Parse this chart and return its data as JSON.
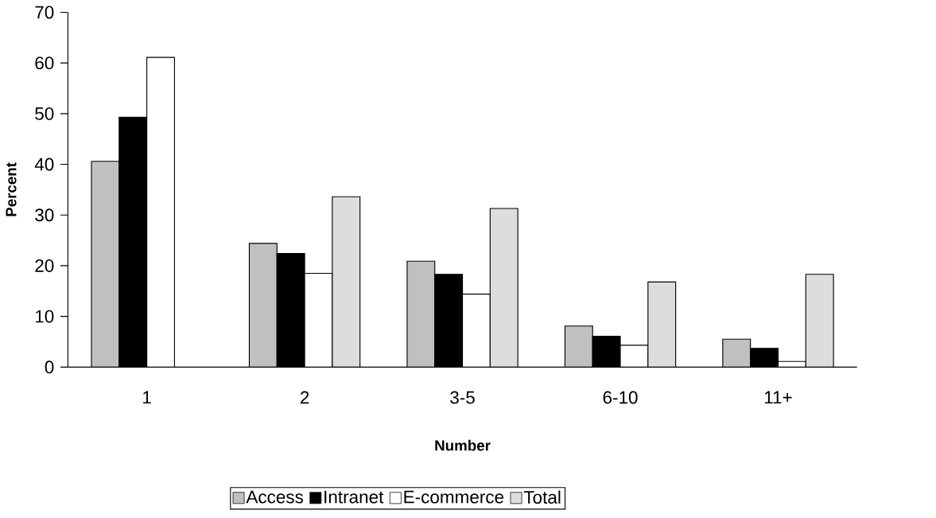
{
  "chart_data": {
    "type": "bar",
    "xlabel": "Number",
    "ylabel": "Percent",
    "categories": [
      "1",
      "2",
      "3-5",
      "6-10",
      "11+"
    ],
    "series": [
      {
        "name": "Access",
        "color": "#c0c0c0",
        "values": [
          40.6,
          24.4,
          20.9,
          8.1,
          5.5
        ]
      },
      {
        "name": "Intranet",
        "color": "#000000",
        "values": [
          49.3,
          22.4,
          18.3,
          6.1,
          3.7
        ]
      },
      {
        "name": "E-commerce",
        "color": "#ffffff",
        "values": [
          61.1,
          18.5,
          14.4,
          4.3,
          1.1
        ]
      },
      {
        "name": "Total",
        "color": "#dddddd",
        "values": [
          null,
          33.6,
          31.3,
          16.8,
          18.3
        ]
      }
    ],
    "ylim": [
      0,
      70
    ],
    "yticks": [
      0,
      10,
      20,
      30,
      40,
      50,
      60,
      70
    ],
    "legend": "bottom"
  }
}
